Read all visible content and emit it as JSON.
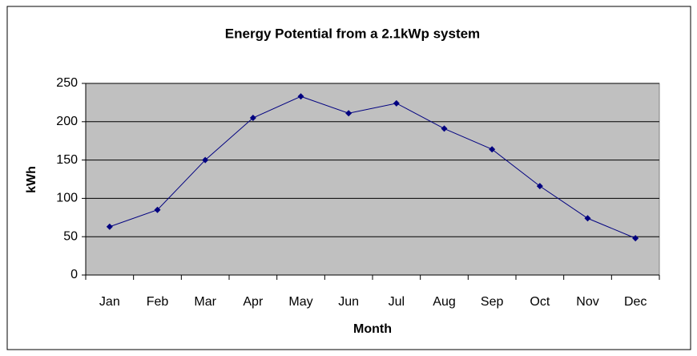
{
  "chart_data": {
    "type": "line",
    "title": "Energy Potential from a 2.1kWp system",
    "x_label": "Month",
    "y_label": "kWh",
    "categories": [
      "Jan",
      "Feb",
      "Mar",
      "Apr",
      "May",
      "Jun",
      "Jul",
      "Aug",
      "Sep",
      "Oct",
      "Nov",
      "Dec"
    ],
    "series": [
      {
        "name": "kWh",
        "color": "#000080",
        "values": [
          63,
          85,
          150,
          205,
          233,
          211,
          224,
          191,
          164,
          116,
          74,
          48
        ]
      }
    ],
    "ylim": [
      0,
      250
    ],
    "yticks": [
      0,
      50,
      100,
      150,
      200,
      250
    ],
    "grid": true,
    "plot_background": "#c0c0c0"
  }
}
